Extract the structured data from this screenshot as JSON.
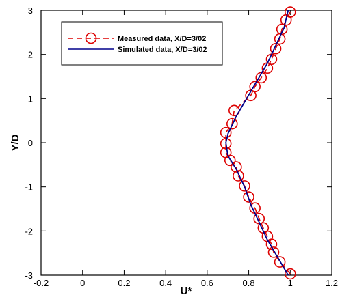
{
  "chart_data": {
    "type": "line",
    "xlabel": "U*",
    "ylabel": "Y/D",
    "xlim": [
      -0.2,
      1.2
    ],
    "ylim": [
      -3,
      3
    ],
    "xticks": [
      -0.2,
      0,
      0.2,
      0.4,
      0.6,
      0.8,
      1,
      1.2
    ],
    "yticks": [
      -3,
      -2,
      -1,
      0,
      1,
      2,
      3
    ],
    "legend_position": "top-left",
    "grid": false,
    "series": [
      {
        "name": "Measured data, X/D=3/02",
        "style": "dashed line with open circle markers",
        "color": "#dd0000",
        "points": [
          [
            1.0,
            2.96
          ],
          [
            0.98,
            2.78
          ],
          [
            0.96,
            2.57
          ],
          [
            0.95,
            2.35
          ],
          [
            0.93,
            2.13
          ],
          [
            0.91,
            1.89
          ],
          [
            0.89,
            1.69
          ],
          [
            0.86,
            1.47
          ],
          [
            0.83,
            1.27
          ],
          [
            0.81,
            1.07
          ],
          [
            0.73,
            0.73
          ],
          [
            0.72,
            0.43
          ],
          [
            0.69,
            0.23
          ],
          [
            0.69,
            -0.02
          ],
          [
            0.69,
            -0.22
          ],
          [
            0.71,
            -0.4
          ],
          [
            0.74,
            -0.55
          ],
          [
            0.75,
            -0.75
          ],
          [
            0.78,
            -0.98
          ],
          [
            0.8,
            -1.23
          ],
          [
            0.83,
            -1.48
          ],
          [
            0.85,
            -1.72
          ],
          [
            0.87,
            -1.93
          ],
          [
            0.89,
            -2.12
          ],
          [
            0.91,
            -2.3
          ],
          [
            0.92,
            -2.48
          ],
          [
            0.95,
            -2.7
          ],
          [
            1.0,
            -2.97
          ]
        ]
      },
      {
        "name": "Simulated data, X/D=3/02",
        "style": "solid line",
        "color": "#00008b",
        "points": [
          [
            0.99,
            3.0
          ],
          [
            0.97,
            2.6
          ],
          [
            0.93,
            2.2
          ],
          [
            0.89,
            1.8
          ],
          [
            0.84,
            1.4
          ],
          [
            0.79,
            1.0
          ],
          [
            0.74,
            0.6
          ],
          [
            0.7,
            0.2
          ],
          [
            0.69,
            0.0
          ],
          [
            0.7,
            -0.3
          ],
          [
            0.74,
            -0.6
          ],
          [
            0.78,
            -1.0
          ],
          [
            0.81,
            -1.4
          ],
          [
            0.85,
            -1.8
          ],
          [
            0.89,
            -2.2
          ],
          [
            0.94,
            -2.6
          ],
          [
            0.99,
            -3.0
          ]
        ]
      }
    ]
  }
}
